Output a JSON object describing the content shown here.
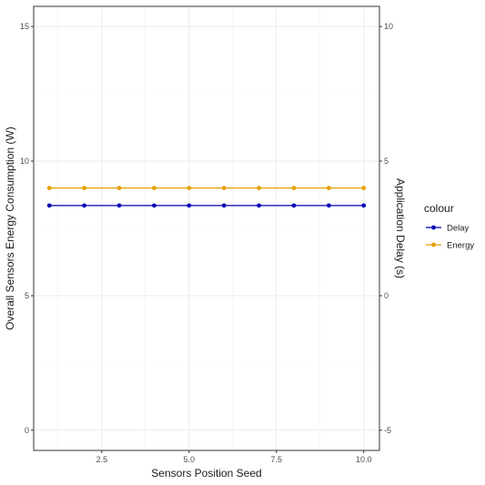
{
  "chart_data": {
    "type": "line",
    "xlabel": "Sensors Position Seed",
    "ylabel_left": "Overall Sensors Energy Consumption (W)",
    "ylabel_right": "Application Delay (s)",
    "x": [
      1,
      2,
      3,
      4,
      5,
      6,
      7,
      8,
      9,
      10
    ],
    "xlim": [
      0.55,
      10.45
    ],
    "x_ticks": [
      "2.5",
      "5.0",
      "7.5",
      "10.0"
    ],
    "ylim_left": [
      -0.75,
      15.75
    ],
    "y_ticks_left": [
      "0",
      "5",
      "10",
      "15"
    ],
    "ylim_right": [
      -5.75,
      10.75
    ],
    "y_ticks_right": [
      "-5",
      "0",
      "5",
      "10"
    ],
    "grid": true,
    "legend": {
      "title": "colour",
      "placement": "right",
      "entries": [
        "Delay",
        "Energy"
      ]
    },
    "series": [
      {
        "name": "Delay",
        "color": "#0000b3",
        "axis": "right",
        "values": [
          3.35,
          3.35,
          3.35,
          3.35,
          3.35,
          3.35,
          3.35,
          3.35,
          3.35,
          3.35
        ]
      },
      {
        "name": "Energy",
        "color": "#e6a000",
        "axis": "left",
        "values": [
          9.0,
          9.0,
          9.0,
          9.0,
          9.0,
          9.0,
          9.0,
          9.0,
          9.0,
          9.0
        ]
      }
    ]
  }
}
